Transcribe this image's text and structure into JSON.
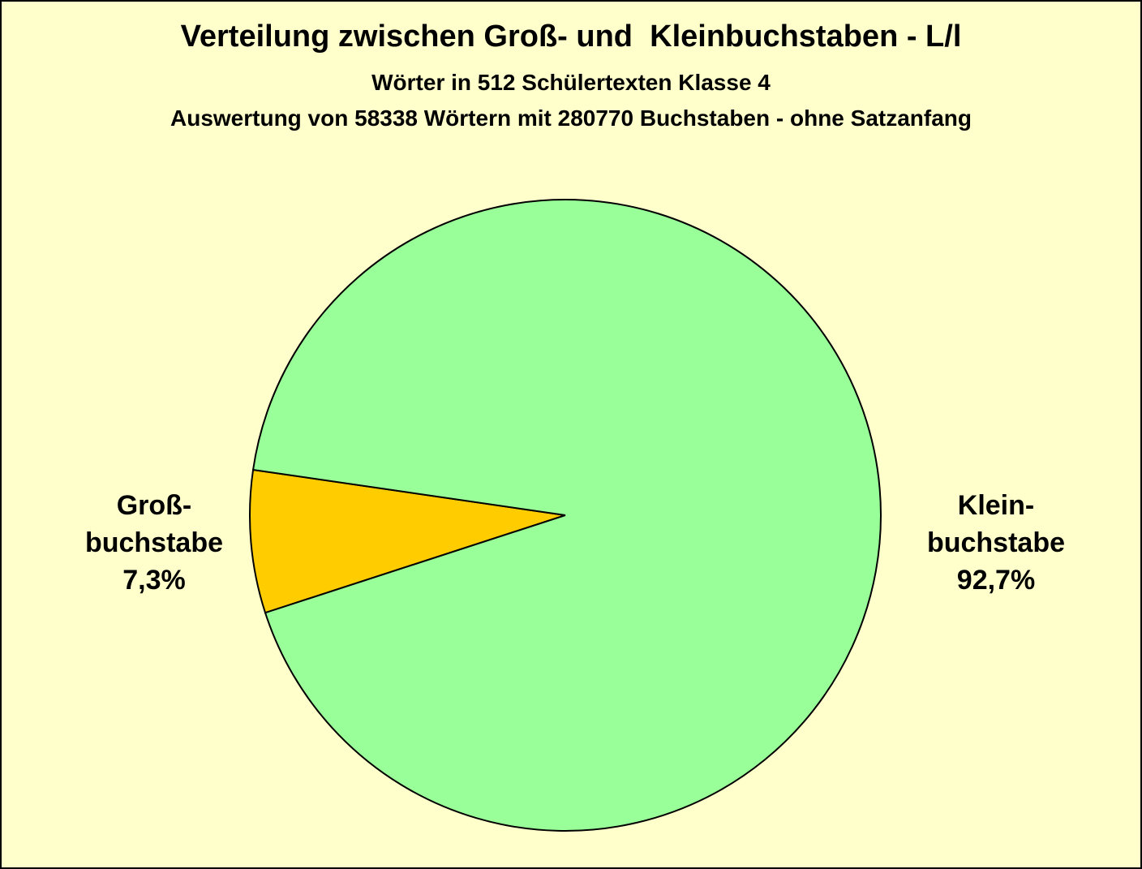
{
  "chart_data": {
    "type": "pie",
    "title": "Verteilung zwischen Groß- und  Kleinbuchstaben - L/l",
    "subtitle": "Wörter in 512 Schülertexten Klasse 4",
    "subtitle2": "Auswertung von 58338 Wörtern mit 280770 Buchstaben - ohne Satzanfang",
    "categories": [
      "Groß-\nbuchstabe",
      "Klein-\nbuchstabe"
    ],
    "values": [
      7.3,
      92.7
    ],
    "value_labels": [
      "7,3%",
      "92,7%"
    ],
    "colors": [
      "#FFCC00",
      "#99FF99"
    ]
  }
}
